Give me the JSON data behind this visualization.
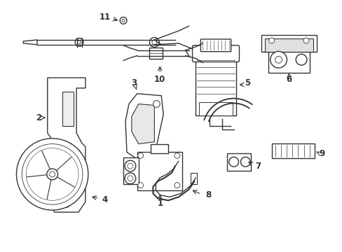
{
  "bg_color": "#ffffff",
  "line_color": "#333333",
  "lw": 1.0,
  "fig_width": 4.89,
  "fig_height": 3.6,
  "dpi": 100
}
